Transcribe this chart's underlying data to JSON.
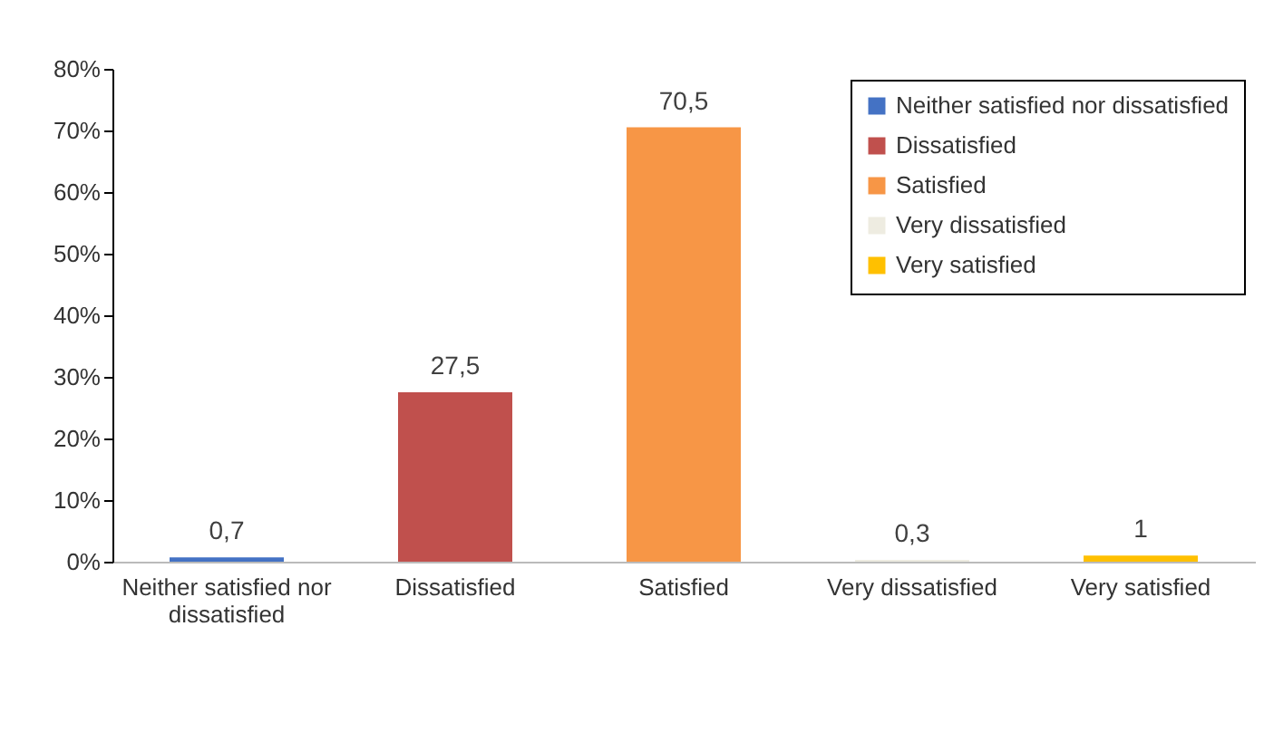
{
  "chart_data": {
    "type": "bar",
    "categories": [
      "Neither satisfied nor dissatisfied",
      "Dissatisfied",
      "Satisfied",
      "Very dissatisfied",
      "Very satisfied"
    ],
    "series": [
      {
        "name": "Neither satisfied nor dissatisfied",
        "color": "#4472c4",
        "values": [
          0.7,
          null,
          null,
          null,
          null
        ],
        "value_labels": [
          "0,7",
          null,
          null,
          null,
          null
        ]
      },
      {
        "name": "Dissatisfied",
        "color": "#c0504d",
        "values": [
          null,
          27.5,
          null,
          null,
          null
        ],
        "value_labels": [
          null,
          "27,5",
          null,
          null,
          null
        ]
      },
      {
        "name": "Satisfied",
        "color": "#f79646",
        "values": [
          null,
          null,
          70.5,
          null,
          null
        ],
        "value_labels": [
          null,
          null,
          "70,5",
          null,
          null
        ]
      },
      {
        "name": "Very dissatisfied",
        "color": "#eeece1",
        "values": [
          null,
          null,
          null,
          0.3,
          null
        ],
        "value_labels": [
          null,
          null,
          null,
          "0,3",
          null
        ]
      },
      {
        "name": "Very satisfied",
        "color": "#ffc000",
        "values": [
          null,
          null,
          null,
          null,
          1
        ],
        "value_labels": [
          null,
          null,
          null,
          null,
          "1"
        ]
      }
    ],
    "ylim": [
      0,
      80
    ],
    "yticks": [
      {
        "value": 0,
        "label": "0%"
      },
      {
        "value": 10,
        "label": "10%"
      },
      {
        "value": 20,
        "label": "20%"
      },
      {
        "value": 30,
        "label": "30%"
      },
      {
        "value": 40,
        "label": "40%"
      },
      {
        "value": 50,
        "label": "50%"
      },
      {
        "value": 60,
        "label": "60%"
      },
      {
        "value": 70,
        "label": "70%"
      },
      {
        "value": 80,
        "label": "80%"
      }
    ],
    "grid": false,
    "legend": "top right"
  }
}
